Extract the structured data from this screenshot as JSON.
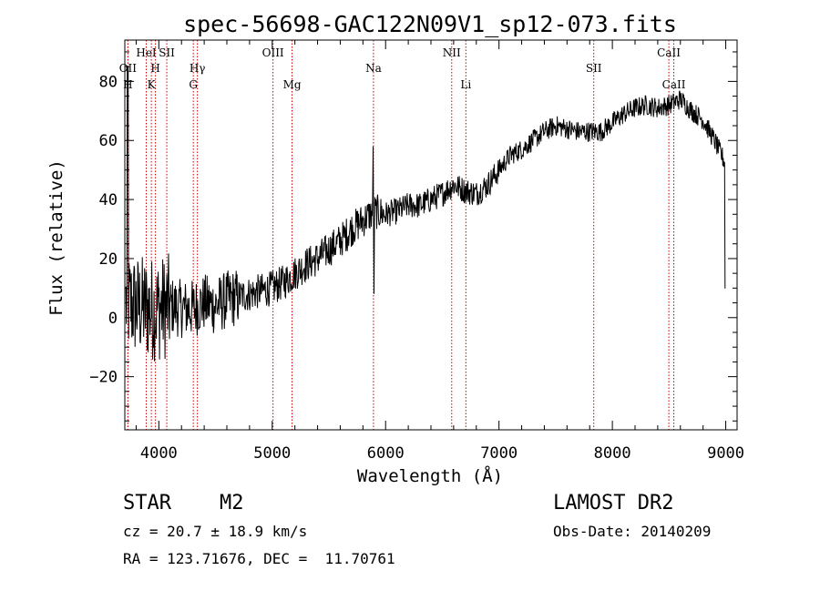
{
  "chart_data": {
    "type": "line",
    "title": "spec-56698-GAC122N09V1_sp12-073.fits",
    "xlabel": "Wavelength (Å)",
    "ylabel": "Flux (relative)",
    "xlim": [
      3700,
      9100
    ],
    "ylim": [
      -38,
      94
    ],
    "xticks": [
      4000,
      5000,
      6000,
      7000,
      8000,
      9000
    ],
    "xtick_labels": [
      "4000",
      "5000",
      "6000",
      "7000",
      "8000",
      "9000"
    ],
    "yticks": [
      -20,
      0,
      20,
      40,
      60,
      80
    ],
    "ytick_labels": [
      "−20",
      "0",
      "20",
      "40",
      "60",
      "80"
    ],
    "grid": false,
    "line_color": "#000000",
    "marker_color": "#cc0000",
    "continuum": {
      "x": [
        3700,
        3800,
        3900,
        4000,
        4100,
        4200,
        4300,
        4400,
        4500,
        4600,
        4700,
        4800,
        4900,
        5000,
        5100,
        5200,
        5300,
        5400,
        5500,
        5600,
        5700,
        5800,
        5900,
        6000,
        6100,
        6200,
        6300,
        6400,
        6500,
        6600,
        6700,
        6800,
        6900,
        7000,
        7100,
        7200,
        7300,
        7400,
        7500,
        7600,
        7700,
        7800,
        7900,
        8000,
        8100,
        8200,
        8300,
        8400,
        8500,
        8600,
        8700,
        8800,
        8900,
        9000
      ],
      "y": [
        5,
        4,
        3,
        3,
        4,
        3,
        3,
        5,
        4,
        6,
        7,
        8,
        9,
        10,
        12,
        15,
        18,
        20,
        23,
        26,
        30,
        33,
        36,
        35,
        36,
        38,
        38,
        40,
        42,
        45,
        43,
        42,
        45,
        50,
        55,
        57,
        60,
        63,
        65,
        64,
        63,
        63,
        63,
        66,
        69,
        71,
        72,
        71,
        72,
        74,
        70,
        67,
        60,
        52
      ]
    },
    "spectral_lines": [
      {
        "label": "OII",
        "wavelength": 3727,
        "row": "top2"
      },
      {
        "label": "H",
        "wavelength": 3727,
        "row": "bottom"
      },
      {
        "label": "HeI",
        "wavelength": 3889,
        "row": "top1"
      },
      {
        "label": "K",
        "wavelength": 3934,
        "row": "bottom"
      },
      {
        "label": "H",
        "wavelength": 3970,
        "row": "top2"
      },
      {
        "label": "SII",
        "wavelength": 4070,
        "row": "top1"
      },
      {
        "label": "Hγ",
        "wavelength": 4340,
        "row": "top2"
      },
      {
        "label": "G",
        "wavelength": 4304,
        "row": "bottom"
      },
      {
        "label": "OIII",
        "wavelength": 5007,
        "row": "top1"
      },
      {
        "label": "Mg",
        "wavelength": 5175,
        "row": "bottom"
      },
      {
        "label": "Na",
        "wavelength": 5893,
        "row": "top2"
      },
      {
        "label": "NII",
        "wavelength": 6583,
        "row": "top1"
      },
      {
        "label": "Li",
        "wavelength": 6708,
        "row": "bottom"
      },
      {
        "label": "SII",
        "wavelength": 7836,
        "row": "top2"
      },
      {
        "label": "CaII",
        "wavelength": 8498,
        "row": "top1"
      },
      {
        "label": "CaII",
        "wavelength": 8542,
        "row": "bottom"
      }
    ]
  },
  "info": {
    "object_class": "STAR",
    "subclass": "M2",
    "survey": "LAMOST DR2",
    "cz": "cz = 20.7 ± 18.9 km/s",
    "obs_date": "Obs-Date: 20140209",
    "coords": "RA = 123.71676, DEC =  11.70761"
  }
}
